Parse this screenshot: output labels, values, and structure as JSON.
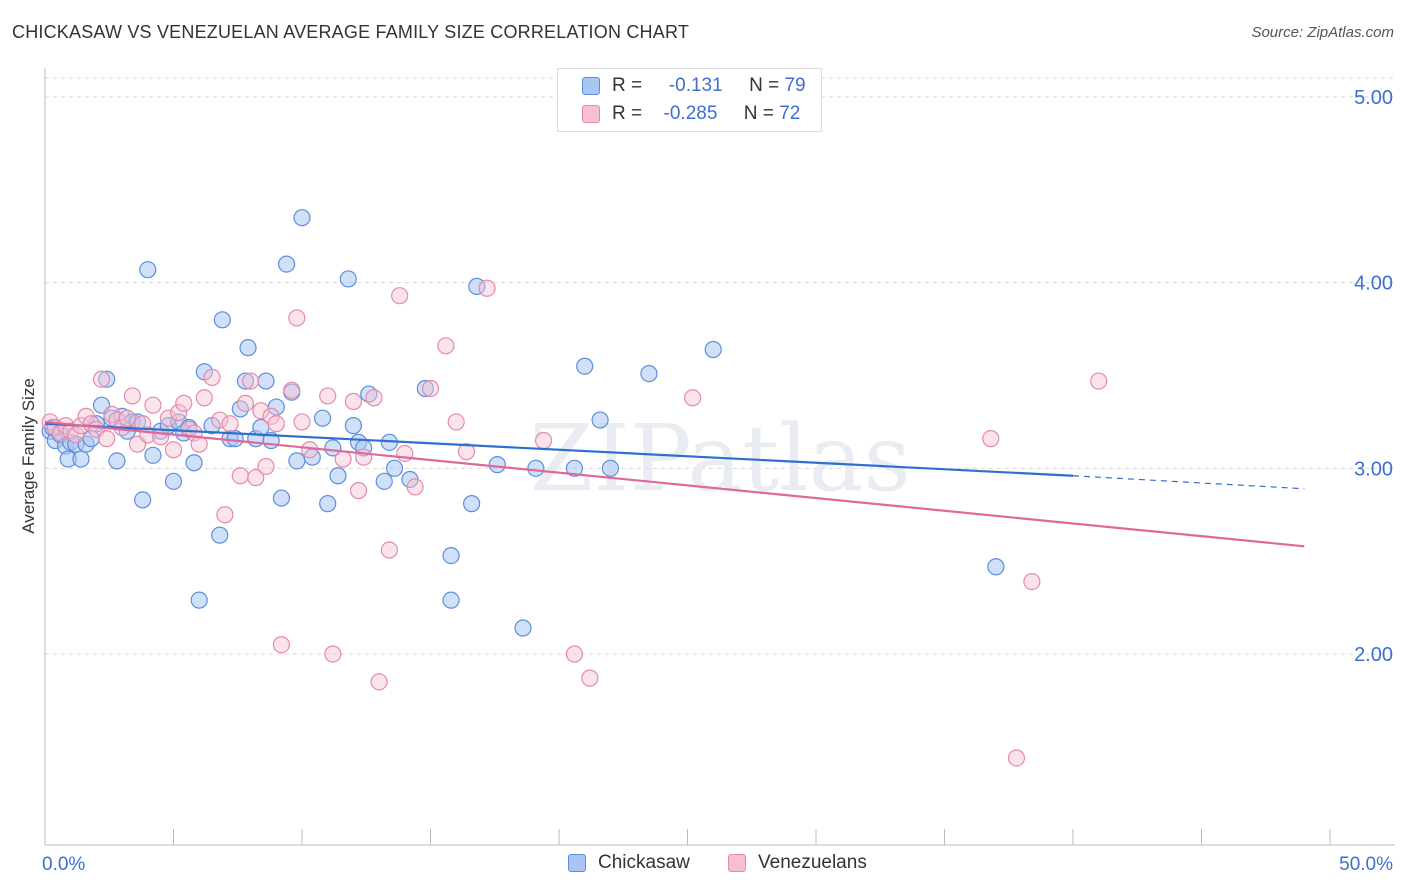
{
  "title": "CHICKASAW VS VENEZUELAN AVERAGE FAMILY SIZE CORRELATION CHART",
  "source": "Source: ZipAtlas.com",
  "watermark": "ZIPatlas",
  "legend": {
    "rows": [
      {
        "r_label": "R =",
        "r_value": "-0.131",
        "n_label": "N =",
        "n_value": "79"
      },
      {
        "r_label": "R =",
        "r_value": "-0.285",
        "n_label": "N =",
        "n_value": "72"
      }
    ]
  },
  "bottom_legend": [
    "Chickasaw",
    "Venezuelans"
  ],
  "colors": {
    "chickasaw_fill": "#a9c6f2",
    "chickasaw_stroke": "#5b8fdc",
    "chickasaw_line": "#2f6fd0",
    "venezuelan_fill": "#f6c0d2",
    "venezuelan_stroke": "#e58aaa",
    "venezuelan_line": "#e0679a",
    "tick_label": "#3d6fd1"
  },
  "chart_data": {
    "type": "scatter",
    "title": "CHICKASAW VS VENEZUELAN AVERAGE FAMILY SIZE CORRELATION CHART",
    "xlabel": "",
    "ylabel": "Average Family Size",
    "xlim": [
      0,
      50
    ],
    "ylim": [
      1.0,
      5.1
    ],
    "x_tick_labels": [
      "0.0%",
      "50.0%"
    ],
    "y_ticks": [
      2.0,
      3.0,
      4.0,
      5.0
    ],
    "y_tick_labels": [
      "2.00",
      "3.00",
      "4.00",
      "5.00"
    ],
    "grid": true,
    "legend_position": "top-center",
    "series": [
      {
        "name": "Chickasaw",
        "trend": {
          "x0": 0,
          "y0": 3.24,
          "x1": 40,
          "y1": 2.96,
          "dashed_to_x": 49,
          "dashed_to_y": 2.89
        },
        "points": [
          [
            0.2,
            3.2
          ],
          [
            0.4,
            3.15
          ],
          [
            0.6,
            3.18
          ],
          [
            0.8,
            3.12
          ],
          [
            0.9,
            3.05
          ],
          [
            1.0,
            3.14
          ],
          [
            1.2,
            3.13
          ],
          [
            1.4,
            3.05
          ],
          [
            1.6,
            3.13
          ],
          [
            1.8,
            3.16
          ],
          [
            2.0,
            3.24
          ],
          [
            2.2,
            3.34
          ],
          [
            2.4,
            3.48
          ],
          [
            2.6,
            3.27
          ],
          [
            2.8,
            3.04
          ],
          [
            3.0,
            3.28
          ],
          [
            3.2,
            3.2
          ],
          [
            3.4,
            3.25
          ],
          [
            3.6,
            3.25
          ],
          [
            3.8,
            2.83
          ],
          [
            4.0,
            4.07
          ],
          [
            4.2,
            3.07
          ],
          [
            4.5,
            3.2
          ],
          [
            4.8,
            3.23
          ],
          [
            5.0,
            2.93
          ],
          [
            5.2,
            3.25
          ],
          [
            5.4,
            3.19
          ],
          [
            5.6,
            3.22
          ],
          [
            5.8,
            3.03
          ],
          [
            6.0,
            2.29
          ],
          [
            6.2,
            3.52
          ],
          [
            6.5,
            3.23
          ],
          [
            6.8,
            2.64
          ],
          [
            6.9,
            3.8
          ],
          [
            7.2,
            3.16
          ],
          [
            7.4,
            3.16
          ],
          [
            7.6,
            3.32
          ],
          [
            7.8,
            3.47
          ],
          [
            7.9,
            3.65
          ],
          [
            8.2,
            3.16
          ],
          [
            8.4,
            3.22
          ],
          [
            8.6,
            3.47
          ],
          [
            8.8,
            3.15
          ],
          [
            9.0,
            3.33
          ],
          [
            9.2,
            2.84
          ],
          [
            9.4,
            4.1
          ],
          [
            9.6,
            3.41
          ],
          [
            9.8,
            3.04
          ],
          [
            10.0,
            4.35
          ],
          [
            10.4,
            3.06
          ],
          [
            10.8,
            3.27
          ],
          [
            11.0,
            2.81
          ],
          [
            11.2,
            3.11
          ],
          [
            11.4,
            2.96
          ],
          [
            11.8,
            4.02
          ],
          [
            12.0,
            3.23
          ],
          [
            12.2,
            3.14
          ],
          [
            12.4,
            3.11
          ],
          [
            12.6,
            3.4
          ],
          [
            13.2,
            2.93
          ],
          [
            13.4,
            3.14
          ],
          [
            13.6,
            3.0
          ],
          [
            14.2,
            2.94
          ],
          [
            14.8,
            3.43
          ],
          [
            15.8,
            2.53
          ],
          [
            15.8,
            2.29
          ],
          [
            16.6,
            2.81
          ],
          [
            16.8,
            3.98
          ],
          [
            17.6,
            3.02
          ],
          [
            18.6,
            2.14
          ],
          [
            19.1,
            3.0
          ],
          [
            20.6,
            3.0
          ],
          [
            21.0,
            3.55
          ],
          [
            21.6,
            3.26
          ],
          [
            22.0,
            3.0
          ],
          [
            23.5,
            3.51
          ],
          [
            26.0,
            3.64
          ],
          [
            37.0,
            2.47
          ],
          [
            0.3,
            3.22
          ]
        ]
      },
      {
        "name": "Venezuelans",
        "trend": {
          "x0": 0,
          "y0": 3.25,
          "x1": 49,
          "y1": 2.58
        },
        "points": [
          [
            0.2,
            3.25
          ],
          [
            0.4,
            3.22
          ],
          [
            0.6,
            3.19
          ],
          [
            0.8,
            3.23
          ],
          [
            1.0,
            3.2
          ],
          [
            1.2,
            3.18
          ],
          [
            1.4,
            3.23
          ],
          [
            1.6,
            3.28
          ],
          [
            1.8,
            3.24
          ],
          [
            2.0,
            3.21
          ],
          [
            2.2,
            3.48
          ],
          [
            2.4,
            3.16
          ],
          [
            2.6,
            3.29
          ],
          [
            2.8,
            3.26
          ],
          [
            3.0,
            3.22
          ],
          [
            3.2,
            3.27
          ],
          [
            3.4,
            3.39
          ],
          [
            3.6,
            3.13
          ],
          [
            3.8,
            3.24
          ],
          [
            4.0,
            3.18
          ],
          [
            4.2,
            3.34
          ],
          [
            4.5,
            3.17
          ],
          [
            4.8,
            3.27
          ],
          [
            5.0,
            3.1
          ],
          [
            5.2,
            3.3
          ],
          [
            5.4,
            3.35
          ],
          [
            5.6,
            3.21
          ],
          [
            5.8,
            3.19
          ],
          [
            6.0,
            3.13
          ],
          [
            6.2,
            3.38
          ],
          [
            6.5,
            3.49
          ],
          [
            6.8,
            3.26
          ],
          [
            7.0,
            2.75
          ],
          [
            7.2,
            3.24
          ],
          [
            7.6,
            2.96
          ],
          [
            7.8,
            3.35
          ],
          [
            8.0,
            3.47
          ],
          [
            8.2,
            2.95
          ],
          [
            8.4,
            3.31
          ],
          [
            8.6,
            3.01
          ],
          [
            8.8,
            3.28
          ],
          [
            9.0,
            3.24
          ],
          [
            9.2,
            2.05
          ],
          [
            9.6,
            3.42
          ],
          [
            9.8,
            3.81
          ],
          [
            10.0,
            3.25
          ],
          [
            10.3,
            3.1
          ],
          [
            11.0,
            3.39
          ],
          [
            11.2,
            2.0
          ],
          [
            11.6,
            3.05
          ],
          [
            12.0,
            3.36
          ],
          [
            12.2,
            2.88
          ],
          [
            12.4,
            3.06
          ],
          [
            12.8,
            3.38
          ],
          [
            13.0,
            1.85
          ],
          [
            13.4,
            2.56
          ],
          [
            13.8,
            3.93
          ],
          [
            14.0,
            3.08
          ],
          [
            14.4,
            2.9
          ],
          [
            15.0,
            3.43
          ],
          [
            15.6,
            3.66
          ],
          [
            16.0,
            3.25
          ],
          [
            16.4,
            3.09
          ],
          [
            17.2,
            3.97
          ],
          [
            19.4,
            3.15
          ],
          [
            20.6,
            2.0
          ],
          [
            21.2,
            1.87
          ],
          [
            25.2,
            3.38
          ],
          [
            36.8,
            3.16
          ],
          [
            37.8,
            1.44
          ],
          [
            38.4,
            2.39
          ],
          [
            41.0,
            3.47
          ]
        ]
      }
    ]
  }
}
